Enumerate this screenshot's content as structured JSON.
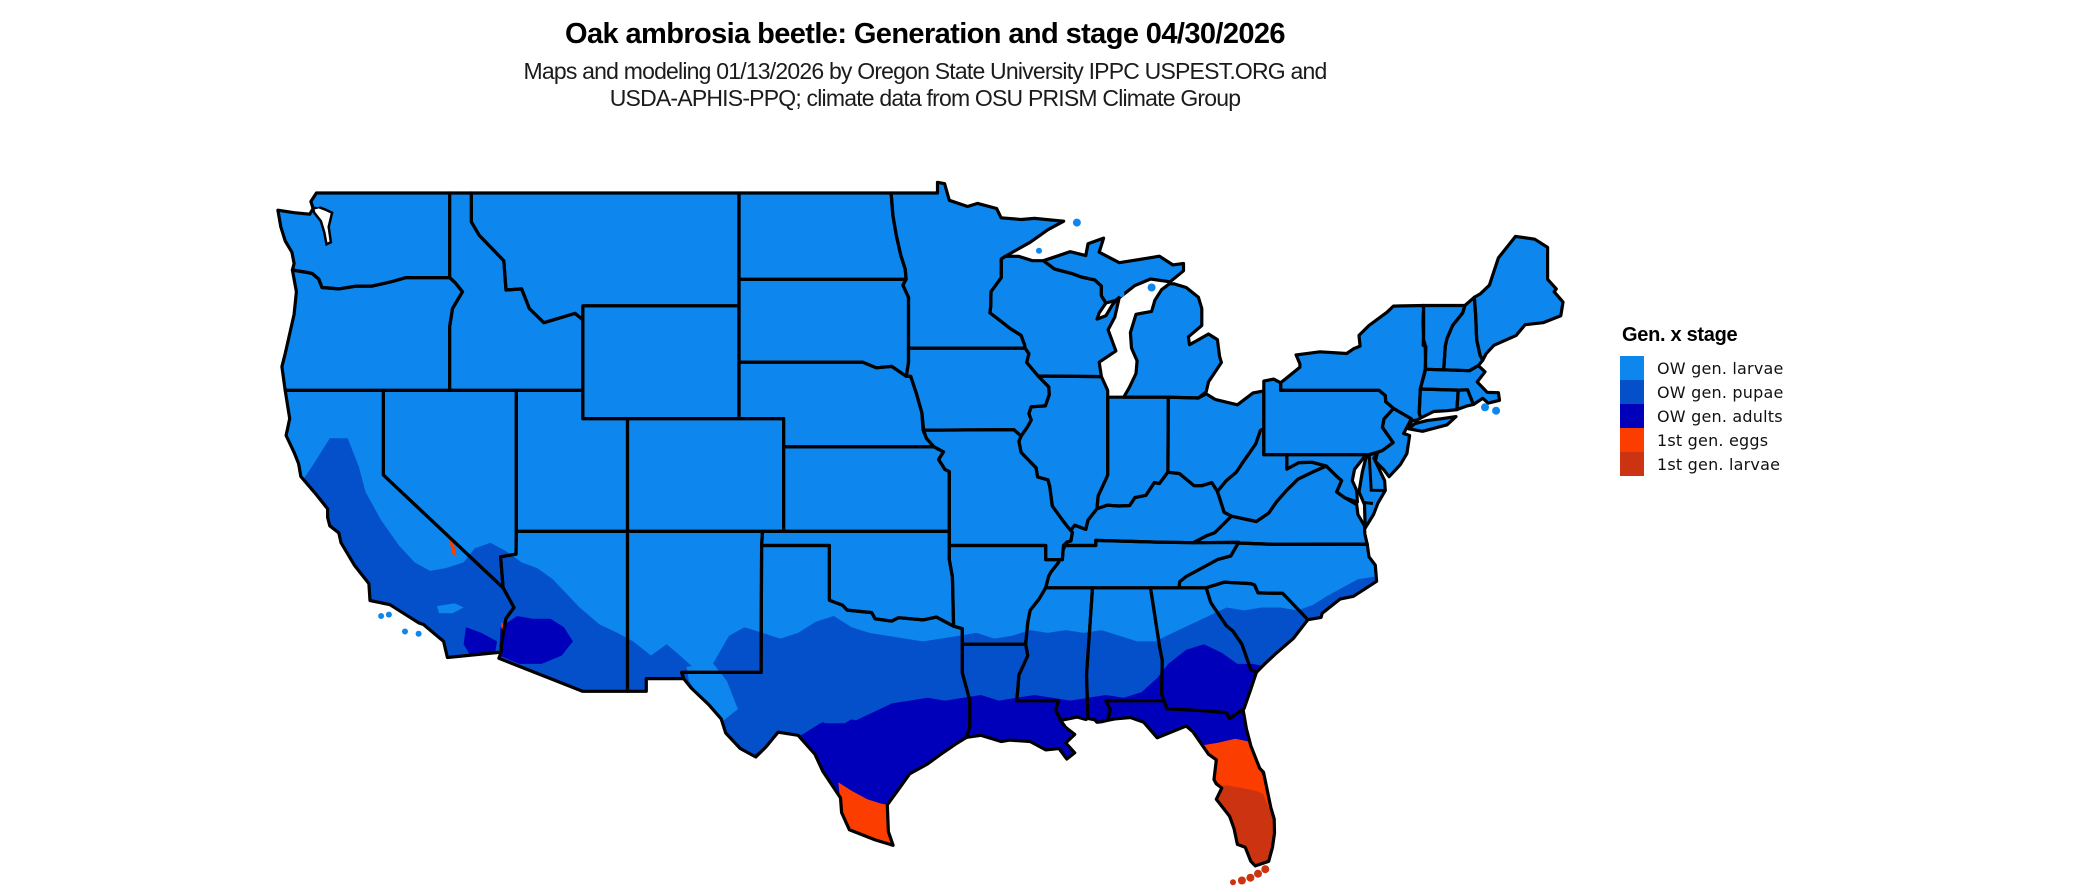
{
  "header": {
    "title": "Oak ambrosia beetle: Generation and stage 04/30/2026",
    "subtitle_line1": "Maps and modeling 01/13/2026 by Oregon State University IPPC USPEST.ORG and",
    "subtitle_line2": "USDA-APHIS-PPQ; climate data from OSU PRISM Climate Group"
  },
  "legend": {
    "title": "Gen. x stage",
    "items": [
      {
        "key": "ow_larvae",
        "label": "OW gen. larvae",
        "color": "#0D87ED"
      },
      {
        "key": "ow_pupae",
        "label": "OW gen. pupae",
        "color": "#0450CB"
      },
      {
        "key": "ow_adults",
        "label": "OW gen. adults",
        "color": "#0000BB"
      },
      {
        "key": "gen1_eggs",
        "label": "1st gen. eggs",
        "color": "#FB3D00"
      },
      {
        "key": "gen1_larvae",
        "label": "1st gen. larvae",
        "color": "#CC3311"
      }
    ]
  },
  "map": {
    "background": "#FFFFFF",
    "state_border_color": "#000000",
    "base_stage_key": "ow_larvae",
    "regions_summary": [
      "Most of CONUS: OW gen. larvae (bright blue)",
      "Southern band CA/AZ/NM/TX to Carolinas: OW gen. pupae (medium blue)",
      "Gulf coast, south TX interior, south AZ deserts, north FL: OW gen. adults (dark blue)",
      "Lower Rio Grande Valley TX and central FL: 1st gen. eggs (orange)",
      "South FL peninsula and Keys: 1st gen. larvae (red-orange)"
    ]
  }
}
